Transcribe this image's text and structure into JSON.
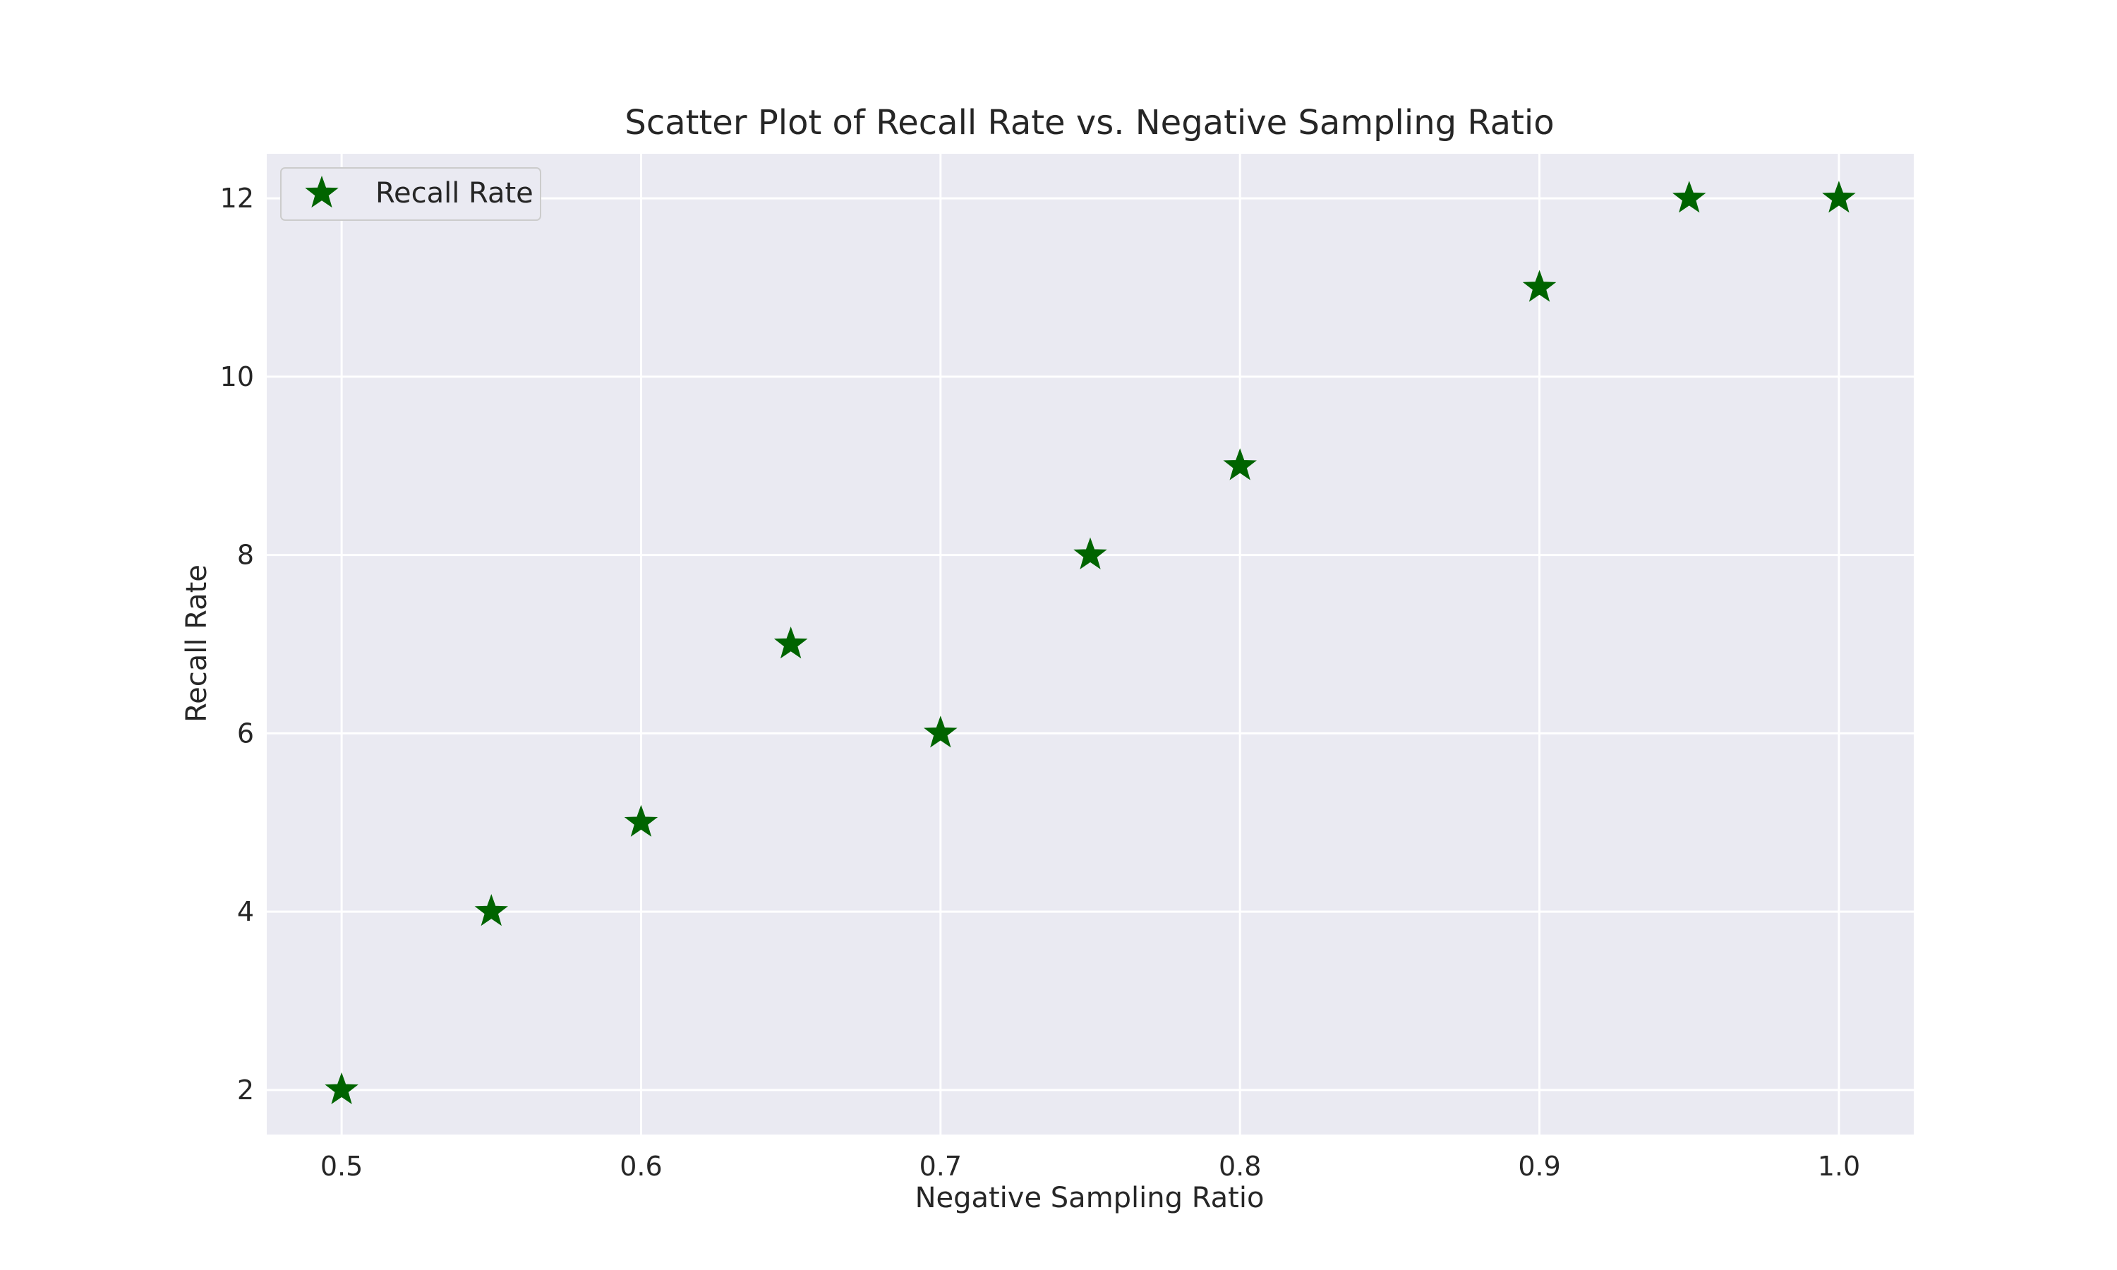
{
  "chart_data": {
    "type": "scatter",
    "title": "Scatter Plot of Recall Rate vs. Negative Sampling Ratio",
    "xlabel": "Negative Sampling Ratio",
    "ylabel": "Recall Rate",
    "xlim": [
      0.475,
      1.025
    ],
    "ylim": [
      1.5,
      12.5
    ],
    "x_ticks": [
      "0.5",
      "0.6",
      "0.7",
      "0.8",
      "0.9",
      "1.0"
    ],
    "y_ticks": [
      "2",
      "4",
      "6",
      "8",
      "10",
      "12"
    ],
    "grid": true,
    "legend": {
      "position": "top-left"
    },
    "series": [
      {
        "name": "Recall Rate",
        "marker": "star",
        "color": "#006400",
        "x": [
          0.5,
          0.55,
          0.6,
          0.65,
          0.7,
          0.75,
          0.8,
          0.9,
          0.95,
          1.0
        ],
        "y": [
          2,
          4,
          5,
          7,
          6,
          8,
          9,
          11,
          12,
          12
        ]
      }
    ]
  },
  "style": {
    "axes_background": "#eaeaf2",
    "grid_color": "#ffffff",
    "text_color": "#262626"
  }
}
